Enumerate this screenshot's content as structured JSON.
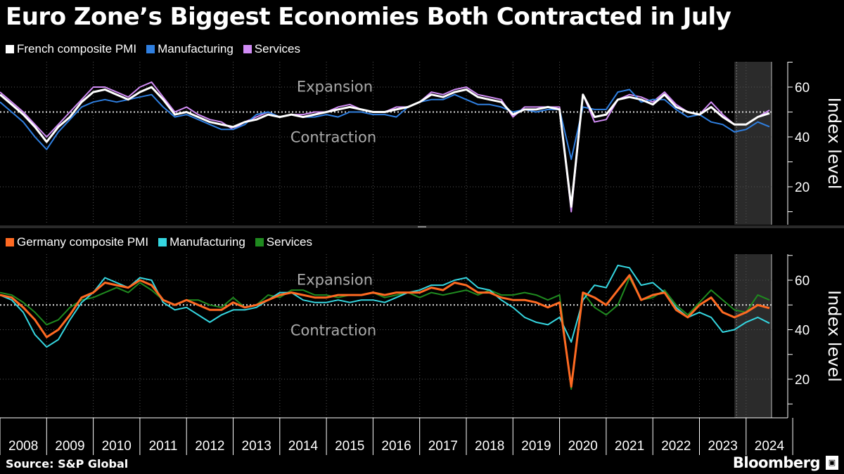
{
  "title": "Euro Zone’s Biggest Economies Both Contracted in July",
  "source": "Source: S&P Global",
  "brand": "Bloomberg",
  "brand_icon": "bloomberg-terminal-icon",
  "legend_top": [
    {
      "label": "French composite PMI",
      "color": "#ffffff"
    },
    {
      "label": "Manufacturing",
      "color": "#2f7fe0"
    },
    {
      "label": "Services",
      "color": "#d18cf5"
    }
  ],
  "legend_bottom": [
    {
      "label": "Germany composite PMI",
      "color": "#ff6a22"
    },
    {
      "label": "Manufacturing",
      "color": "#35d6e0"
    },
    {
      "label": "Services",
      "color": "#1f8a1f"
    }
  ],
  "x_axis": {
    "years": [
      "2008",
      "2009",
      "2010",
      "2011",
      "2012",
      "2013",
      "2014",
      "2015",
      "2016",
      "2017",
      "2018",
      "2019",
      "2020",
      "2021",
      "2022",
      "2023",
      "2024"
    ]
  },
  "chart_data": [
    {
      "type": "line",
      "panel": "France",
      "ylabel": "Index level",
      "yticks": [
        20,
        40,
        60
      ],
      "ylim": [
        5,
        70
      ],
      "reference_line": 50,
      "annotations": [
        "Expansion",
        "Contraction"
      ],
      "highlight": "recent period shaded from late 2023 to mid 2024",
      "x": [
        "2008-01",
        "2008-04",
        "2008-07",
        "2008-10",
        "2009-01",
        "2009-04",
        "2009-07",
        "2009-10",
        "2010-01",
        "2010-04",
        "2010-07",
        "2010-10",
        "2011-01",
        "2011-04",
        "2011-07",
        "2011-10",
        "2012-01",
        "2012-04",
        "2012-07",
        "2012-10",
        "2013-01",
        "2013-04",
        "2013-07",
        "2013-10",
        "2014-01",
        "2014-04",
        "2014-07",
        "2014-10",
        "2015-01",
        "2015-04",
        "2015-07",
        "2015-10",
        "2016-01",
        "2016-04",
        "2016-07",
        "2016-10",
        "2017-01",
        "2017-04",
        "2017-07",
        "2017-10",
        "2018-01",
        "2018-04",
        "2018-07",
        "2018-10",
        "2019-01",
        "2019-04",
        "2019-07",
        "2019-10",
        "2020-01",
        "2020-04",
        "2020-07",
        "2020-10",
        "2021-01",
        "2021-04",
        "2021-07",
        "2021-10",
        "2022-01",
        "2022-04",
        "2022-07",
        "2022-10",
        "2023-01",
        "2023-04",
        "2023-07",
        "2023-10",
        "2024-01",
        "2024-04",
        "2024-07"
      ],
      "series": [
        {
          "name": "French composite PMI",
          "color": "#ffffff",
          "values": [
            57,
            53,
            49,
            44,
            38,
            44,
            48,
            54,
            58,
            59,
            57,
            55,
            58,
            60,
            55,
            49,
            50,
            48,
            46,
            45,
            44,
            46,
            47,
            49,
            48,
            49,
            48,
            49,
            50,
            51,
            52,
            51,
            50,
            50,
            51,
            52,
            54,
            57,
            56,
            58,
            59,
            56,
            55,
            54,
            49,
            51,
            51,
            52,
            51,
            12,
            57,
            48,
            49,
            55,
            56,
            55,
            53,
            57,
            52,
            50,
            49,
            52,
            48,
            45,
            45,
            48,
            49.5
          ]
        },
        {
          "name": "Manufacturing",
          "color": "#2f7fe0",
          "values": [
            54,
            50,
            46,
            40,
            35,
            42,
            47,
            52,
            54,
            55,
            54,
            55,
            56,
            57,
            52,
            48,
            49,
            47,
            45,
            43,
            43,
            45,
            49,
            50,
            48,
            49,
            48,
            48,
            49,
            48,
            50,
            50,
            49,
            49,
            48,
            52,
            54,
            55,
            55,
            57,
            55,
            53,
            53,
            52,
            50,
            51,
            50,
            51,
            51,
            31,
            52,
            51,
            51,
            58,
            59,
            54,
            55,
            55,
            51,
            48,
            49,
            46,
            45,
            42,
            43,
            46,
            44.1
          ]
        },
        {
          "name": "Services",
          "color": "#d18cf5",
          "values": [
            58,
            54,
            50,
            45,
            40,
            45,
            50,
            55,
            60,
            60,
            58,
            56,
            60,
            62,
            56,
            50,
            52,
            49,
            47,
            46,
            43,
            46,
            48,
            50,
            48,
            49,
            49,
            50,
            50,
            52,
            53,
            51,
            50,
            50,
            52,
            52,
            54,
            58,
            57,
            59,
            60,
            57,
            56,
            55,
            48,
            52,
            52,
            52,
            52,
            10,
            57,
            46,
            47,
            55,
            57,
            56,
            54,
            58,
            53,
            50,
            49,
            54,
            49,
            45,
            45,
            48,
            50.7
          ]
        }
      ]
    },
    {
      "type": "line",
      "panel": "Germany",
      "ylabel": "Index level",
      "yticks": [
        20,
        40,
        60
      ],
      "ylim": [
        5,
        70
      ],
      "reference_line": 50,
      "annotations": [
        "Expansion",
        "Contraction"
      ],
      "highlight": "recent period shaded from late 2023 to mid 2024",
      "x": [
        "2008-01",
        "2008-04",
        "2008-07",
        "2008-10",
        "2009-01",
        "2009-04",
        "2009-07",
        "2009-10",
        "2010-01",
        "2010-04",
        "2010-07",
        "2010-10",
        "2011-01",
        "2011-04",
        "2011-07",
        "2011-10",
        "2012-01",
        "2012-04",
        "2012-07",
        "2012-10",
        "2013-01",
        "2013-04",
        "2013-07",
        "2013-10",
        "2014-01",
        "2014-04",
        "2014-07",
        "2014-10",
        "2015-01",
        "2015-04",
        "2015-07",
        "2015-10",
        "2016-01",
        "2016-04",
        "2016-07",
        "2016-10",
        "2017-01",
        "2017-04",
        "2017-07",
        "2017-10",
        "2018-01",
        "2018-04",
        "2018-07",
        "2018-10",
        "2019-01",
        "2019-04",
        "2019-07",
        "2019-10",
        "2020-01",
        "2020-04",
        "2020-07",
        "2020-10",
        "2021-01",
        "2021-04",
        "2021-07",
        "2021-10",
        "2022-01",
        "2022-04",
        "2022-07",
        "2022-10",
        "2023-01",
        "2023-04",
        "2023-07",
        "2023-10",
        "2024-01",
        "2024-04",
        "2024-07"
      ],
      "series": [
        {
          "name": "Germany composite PMI",
          "color": "#ff6a22",
          "values": [
            54,
            53,
            49,
            44,
            37,
            40,
            46,
            53,
            55,
            59,
            58,
            57,
            60,
            58,
            52,
            50,
            52,
            50,
            48,
            48,
            51,
            49,
            50,
            52,
            54,
            55,
            54,
            53,
            53,
            54,
            54,
            54,
            55,
            54,
            55,
            55,
            55,
            57,
            56,
            59,
            58,
            55,
            55,
            53,
            52,
            52,
            51,
            49,
            51,
            17,
            55,
            53,
            50,
            56,
            62,
            52,
            54,
            55,
            48,
            45,
            50,
            53,
            47,
            45,
            47,
            50,
            48.7
          ]
        },
        {
          "name": "Manufacturing",
          "color": "#35d6e0",
          "values": [
            54,
            52,
            47,
            38,
            33,
            36,
            44,
            51,
            55,
            61,
            59,
            57,
            61,
            60,
            51,
            48,
            49,
            46,
            43,
            46,
            48,
            48,
            49,
            52,
            55,
            55,
            52,
            51,
            51,
            52,
            51,
            52,
            52,
            51,
            53,
            55,
            56,
            58,
            58,
            60,
            61,
            57,
            56,
            52,
            49,
            45,
            43,
            42,
            45,
            35,
            52,
            58,
            57,
            66,
            65,
            58,
            59,
            55,
            49,
            45,
            47,
            45,
            39,
            40,
            43,
            45,
            42.6
          ]
        },
        {
          "name": "Services",
          "color": "#1f8a1f",
          "values": [
            55,
            54,
            51,
            47,
            42,
            44,
            49,
            52,
            53,
            55,
            57,
            55,
            59,
            56,
            52,
            50,
            52,
            52,
            50,
            49,
            53,
            49,
            50,
            54,
            53,
            56,
            56,
            54,
            54,
            53,
            54,
            54,
            55,
            53,
            54,
            55,
            53,
            55,
            54,
            55,
            56,
            54,
            56,
            54,
            54,
            55,
            54,
            52,
            54,
            16,
            55,
            49,
            46,
            50,
            61,
            52,
            53,
            56,
            50,
            46,
            51,
            56,
            52,
            48,
            47,
            54,
            52
          ]
        }
      ]
    }
  ]
}
